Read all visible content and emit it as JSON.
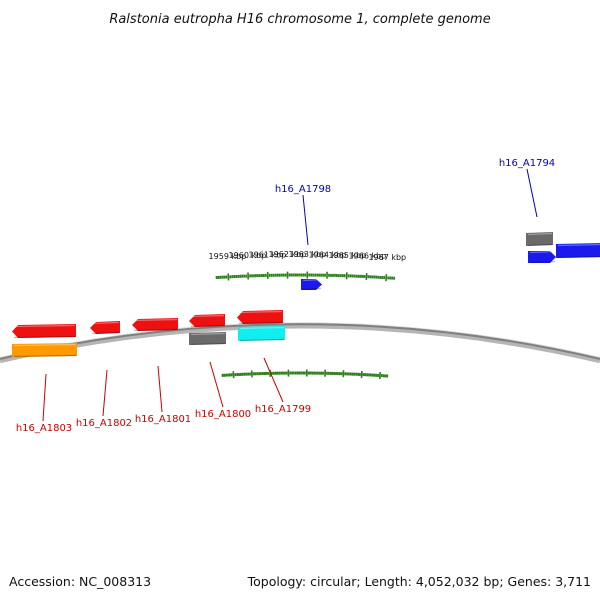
{
  "title": "Ralstonia eutropha H16 chromosome 1, complete genome",
  "footer": {
    "accession": "Accession: NC_008313",
    "summary": "Topology: circular; Length: 4,052,032 bp; Genes: 3,711"
  },
  "colors": {
    "background": "#ffffff",
    "tick": "#2e7d1e",
    "backbone": "#808080",
    "forward_label": "#0000cc",
    "reverse_label": "#cc0000",
    "gene_red": "#ee1111",
    "gene_blue": "#1a1aee",
    "gene_gray": "#6a6a6a",
    "gene_orange": "#ff9900",
    "gene_cyan": "#11eeee"
  },
  "scale": {
    "unit": "kbp",
    "ticks": [
      {
        "kbp": 1967,
        "label": "1967 kbp"
      },
      {
        "kbp": 1966,
        "label": "1966 kbp"
      },
      {
        "kbp": 1965,
        "label": "1965 kbp"
      },
      {
        "kbp": 1964,
        "label": "1964 kbp"
      },
      {
        "kbp": 1963,
        "label": "1963 kbp"
      },
      {
        "kbp": 1962,
        "label": "1962 kbp"
      },
      {
        "kbp": 1961,
        "label": "1961 kbp"
      },
      {
        "kbp": 1960,
        "label": "1960 kbp"
      },
      {
        "kbp": 1959,
        "label": "1959 kbp"
      }
    ]
  },
  "genes": [
    {
      "id": "h16_A1794",
      "label": "h16_A1794",
      "strand": "forward",
      "color": "blue",
      "labeled": true
    },
    {
      "id": "h16_A1798",
      "label": "h16_A1798",
      "strand": "forward",
      "color": "blue",
      "labeled": true
    },
    {
      "id": "h16_A1799",
      "label": "h16_A1799",
      "strand": "reverse",
      "color": "red",
      "labeled": true
    },
    {
      "id": "h16_A1800",
      "label": "h16_A1800",
      "strand": "reverse",
      "color": "red",
      "labeled": true
    },
    {
      "id": "h16_A1801",
      "label": "h16_A1801",
      "strand": "reverse",
      "color": "red",
      "labeled": true
    },
    {
      "id": "h16_A1802",
      "label": "h16_A1802",
      "strand": "reverse",
      "color": "red",
      "labeled": true
    },
    {
      "id": "h16_A1803",
      "label": "h16_A1803",
      "strand": "reverse",
      "color": "red",
      "labeled": true
    },
    {
      "id": "feature-cyan",
      "strand": "reverse",
      "color": "cyan",
      "labeled": false
    },
    {
      "id": "feature-gray-a",
      "strand": "reverse",
      "color": "gray",
      "labeled": false
    },
    {
      "id": "feature-orange",
      "strand": "reverse",
      "color": "orange",
      "labeled": false
    },
    {
      "id": "feature-gray-b",
      "strand": "forward",
      "color": "gray",
      "labeled": false
    },
    {
      "id": "feature-blue-long",
      "strand": "forward",
      "color": "blue",
      "labeled": false
    }
  ]
}
